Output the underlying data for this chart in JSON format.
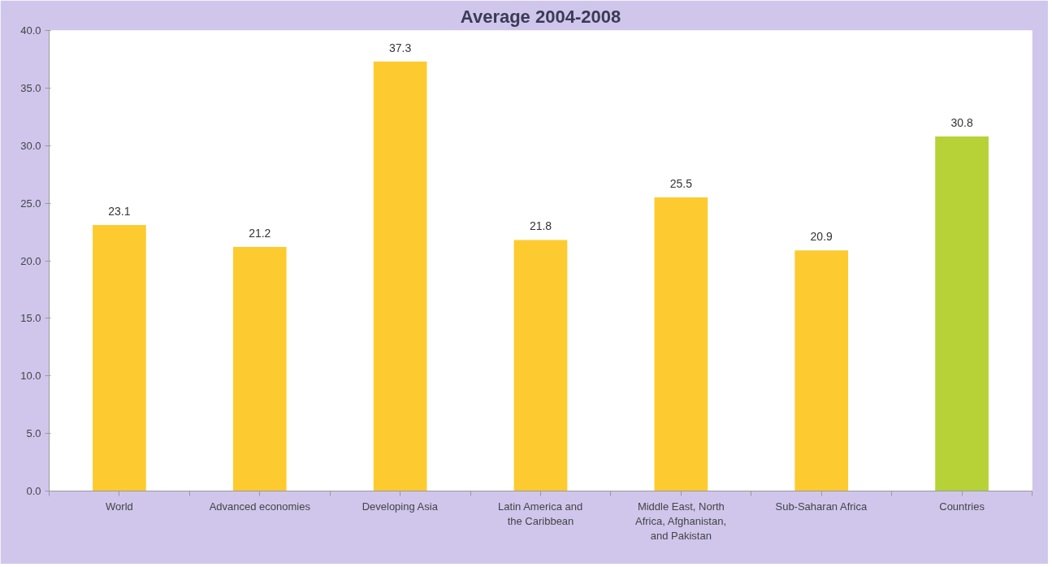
{
  "chart_data": {
    "type": "bar",
    "title": "Average 2004-2008",
    "categories": [
      "World",
      "Advanced economies",
      "Developing Asia",
      "Latin America and the Caribbean",
      "Middle East, North Africa, Afghanistan, and Pakistan",
      "Sub-Saharan Africa",
      "Countries"
    ],
    "values": [
      23.1,
      21.2,
      37.3,
      21.8,
      25.5,
      20.9,
      30.8
    ],
    "colors": [
      "#fdcb2f",
      "#fdcb2f",
      "#fdcb2f",
      "#fdcb2f",
      "#fdcb2f",
      "#fdcb2f",
      "#b6d236"
    ],
    "ylim": [
      0,
      40
    ],
    "yticks": [
      {
        "value": 0,
        "label": "0.0"
      },
      {
        "value": 5,
        "label": "5.0"
      },
      {
        "value": 10,
        "label": "10.0"
      },
      {
        "value": 15,
        "label": "15.0"
      },
      {
        "value": 20,
        "label": "20.0"
      },
      {
        "value": 25,
        "label": "25.0"
      },
      {
        "value": 30,
        "label": "30.0"
      },
      {
        "value": 35,
        "label": "35.0"
      },
      {
        "value": 40,
        "label": "40.0"
      }
    ],
    "data_labels": true,
    "grid": false
  }
}
